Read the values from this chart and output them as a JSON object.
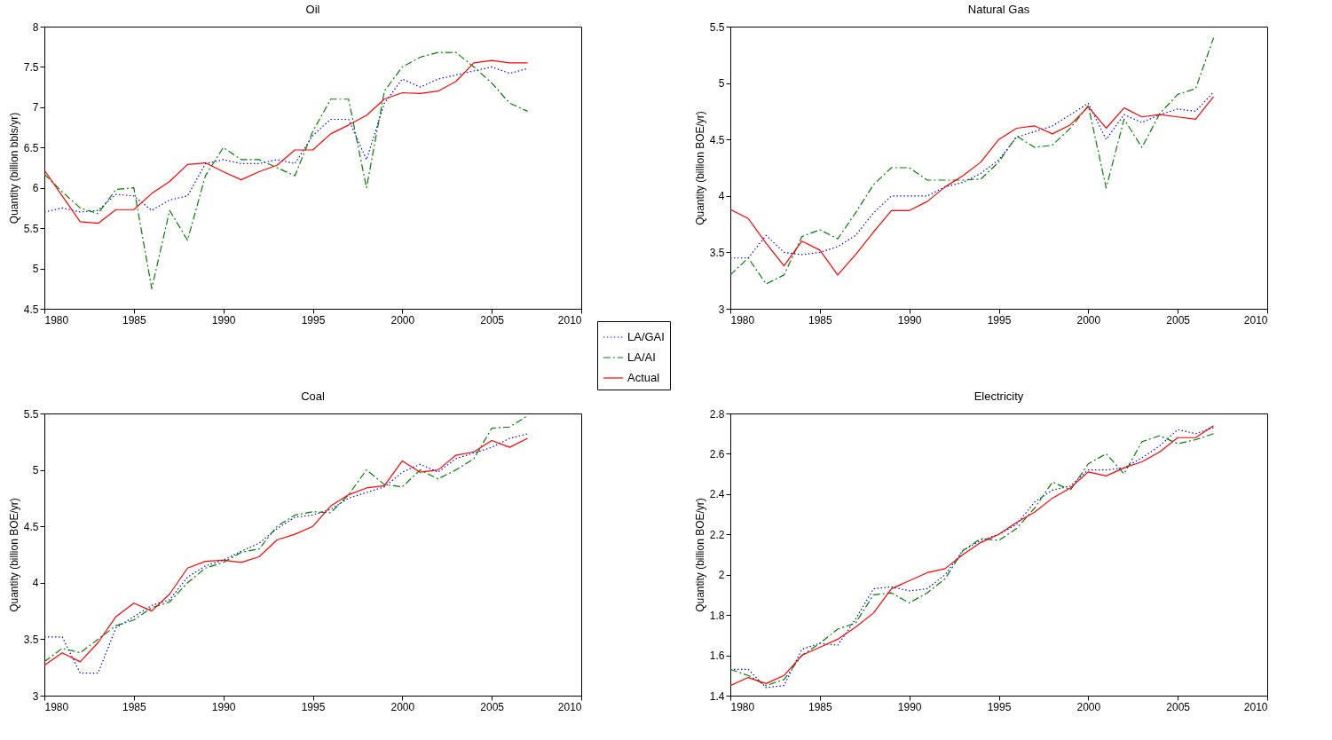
{
  "chart_data": [
    {
      "type": "line",
      "title": "Oil",
      "ylabel": "Quantity (billion bbls/yr)",
      "legend": "bottom right",
      "x": [
        1980,
        1981,
        1982,
        1983,
        1984,
        1985,
        1986,
        1987,
        1988,
        1989,
        1990,
        1991,
        1992,
        1993,
        1994,
        1995,
        1996,
        1997,
        1998,
        1999,
        2000,
        2001,
        2002,
        2003,
        2004,
        2005,
        2006,
        2007
      ],
      "xlim": [
        1980,
        2010
      ],
      "xticks": [
        1980,
        1985,
        1990,
        1995,
        2000,
        2005,
        2010
      ],
      "ylim": [
        4.5,
        8
      ],
      "yticks": [
        4.5,
        5,
        5.5,
        6,
        6.5,
        7,
        7.5,
        8
      ],
      "series": [
        {
          "name": "LA/GAI",
          "color": "#0000ff",
          "line_style": "dotted",
          "values": [
            5.7,
            5.75,
            5.7,
            5.72,
            5.92,
            5.9,
            5.72,
            5.85,
            5.9,
            6.3,
            6.35,
            6.3,
            6.3,
            6.35,
            6.3,
            6.65,
            6.85,
            6.85,
            6.35,
            7.05,
            7.35,
            7.25,
            7.35,
            7.4,
            7.45,
            7.5,
            7.42,
            7.48
          ]
        },
        {
          "name": "LA/AI",
          "color": "#008000",
          "line_style": "dashed",
          "values": [
            6.17,
            5.95,
            5.75,
            5.68,
            5.98,
            6.0,
            4.75,
            5.72,
            5.35,
            6.15,
            6.5,
            6.35,
            6.35,
            6.25,
            6.15,
            6.7,
            7.1,
            7.1,
            6.0,
            7.2,
            7.5,
            7.62,
            7.68,
            7.68,
            7.5,
            7.3,
            7.05,
            6.95
          ]
        },
        {
          "name": "Actual",
          "color": "#ff0000",
          "line_style": "solid",
          "values": [
            6.22,
            5.9,
            5.58,
            5.56,
            5.73,
            5.73,
            5.93,
            6.08,
            6.29,
            6.31,
            6.2,
            6.1,
            6.2,
            6.28,
            6.47,
            6.47,
            6.67,
            6.78,
            6.9,
            7.1,
            7.18,
            7.17,
            7.2,
            7.32,
            7.55,
            7.58,
            7.55,
            7.55
          ]
        }
      ]
    },
    {
      "type": "line",
      "title": "Natural Gas",
      "ylabel": "Quantity (billion BOE/yr)",
      "x": [
        1980,
        1981,
        1982,
        1983,
        1984,
        1985,
        1986,
        1987,
        1988,
        1989,
        1990,
        1991,
        1992,
        1993,
        1994,
        1995,
        1996,
        1997,
        1998,
        1999,
        2000,
        2001,
        2002,
        2003,
        2004,
        2005,
        2006,
        2007
      ],
      "xlim": [
        1980,
        2010
      ],
      "xticks": [
        1980,
        1985,
        1990,
        1995,
        2000,
        2005,
        2010
      ],
      "ylim": [
        3,
        5.5
      ],
      "yticks": [
        3,
        3.5,
        4,
        4.5,
        5,
        5.5
      ],
      "series": [
        {
          "name": "LA/GAI",
          "color": "#0000ff",
          "line_style": "dotted",
          "values": [
            3.45,
            3.45,
            3.65,
            3.5,
            3.48,
            3.5,
            3.55,
            3.65,
            3.85,
            4.0,
            4.0,
            4.0,
            4.08,
            4.12,
            4.2,
            4.32,
            4.52,
            4.57,
            4.62,
            4.72,
            4.82,
            4.5,
            4.72,
            4.65,
            4.72,
            4.77,
            4.75,
            4.92
          ]
        },
        {
          "name": "LA/AI",
          "color": "#008000",
          "line_style": "dashed",
          "values": [
            3.3,
            3.45,
            3.22,
            3.3,
            3.64,
            3.7,
            3.62,
            3.85,
            4.1,
            4.25,
            4.25,
            4.14,
            4.14,
            4.14,
            4.15,
            4.3,
            4.53,
            4.43,
            4.45,
            4.6,
            4.8,
            4.07,
            4.68,
            4.43,
            4.73,
            4.9,
            4.95,
            5.4
          ]
        },
        {
          "name": "Actual",
          "color": "#ff0000",
          "line_style": "solid",
          "values": [
            3.88,
            3.8,
            3.58,
            3.38,
            3.6,
            3.52,
            3.3,
            3.48,
            3.68,
            3.87,
            3.87,
            3.95,
            4.08,
            4.18,
            4.3,
            4.5,
            4.6,
            4.62,
            4.55,
            4.63,
            4.79,
            4.6,
            4.78,
            4.7,
            4.72,
            4.7,
            4.68,
            4.88
          ]
        }
      ]
    },
    {
      "type": "line",
      "title": "Coal",
      "ylabel": "Quantity (billion BOE/yr)",
      "x": [
        1980,
        1981,
        1982,
        1983,
        1984,
        1985,
        1986,
        1987,
        1988,
        1989,
        1990,
        1991,
        1992,
        1993,
        1994,
        1995,
        1996,
        1997,
        1998,
        1999,
        2000,
        2001,
        2002,
        2003,
        2004,
        2005,
        2006,
        2007
      ],
      "xlim": [
        1980,
        2010
      ],
      "xticks": [
        1980,
        1985,
        1990,
        1995,
        2000,
        2005,
        2010
      ],
      "ylim": [
        3,
        5.5
      ],
      "yticks": [
        3,
        3.5,
        4,
        4.5,
        5,
        5.5
      ],
      "series": [
        {
          "name": "LA/GAI",
          "color": "#0000ff",
          "line_style": "dotted",
          "values": [
            3.52,
            3.52,
            3.2,
            3.2,
            3.6,
            3.7,
            3.8,
            3.85,
            4.05,
            4.15,
            4.2,
            4.28,
            4.35,
            4.48,
            4.58,
            4.6,
            4.65,
            4.75,
            4.8,
            4.85,
            4.98,
            5.05,
            4.98,
            5.1,
            5.15,
            5.2,
            5.28,
            5.32
          ]
        },
        {
          "name": "LA/AI",
          "color": "#008000",
          "line_style": "dashed",
          "values": [
            3.3,
            3.42,
            3.38,
            3.5,
            3.62,
            3.67,
            3.78,
            3.83,
            4.0,
            4.13,
            4.18,
            4.27,
            4.3,
            4.5,
            4.6,
            4.63,
            4.62,
            4.78,
            5.0,
            4.87,
            4.85,
            5.0,
            4.92,
            5.0,
            5.1,
            5.37,
            5.38,
            5.48
          ]
        },
        {
          "name": "Actual",
          "color": "#ff0000",
          "line_style": "solid",
          "values": [
            3.27,
            3.38,
            3.3,
            3.47,
            3.7,
            3.82,
            3.75,
            3.9,
            4.13,
            4.19,
            4.2,
            4.18,
            4.23,
            4.38,
            4.43,
            4.5,
            4.68,
            4.78,
            4.84,
            4.86,
            5.08,
            4.98,
            5.0,
            5.13,
            5.16,
            5.26,
            5.2,
            5.28
          ]
        }
      ]
    },
    {
      "type": "line",
      "title": "Electricity",
      "ylabel": "Quantity (billion BOE/yr)",
      "x": [
        1980,
        1981,
        1982,
        1983,
        1984,
        1985,
        1986,
        1987,
        1988,
        1989,
        1990,
        1991,
        1992,
        1993,
        1994,
        1995,
        1996,
        1997,
        1998,
        1999,
        2000,
        2001,
        2002,
        2003,
        2004,
        2005,
        2006,
        2007
      ],
      "xlim": [
        1980,
        2010
      ],
      "xticks": [
        1980,
        1985,
        1990,
        1995,
        2000,
        2005,
        2010
      ],
      "ylim": [
        1.4,
        2.8
      ],
      "yticks": [
        1.4,
        1.6,
        1.8,
        2,
        2.2,
        2.4,
        2.6,
        2.8
      ],
      "series": [
        {
          "name": "LA/GAI",
          "color": "#0000ff",
          "line_style": "dotted",
          "values": [
            1.53,
            1.53,
            1.44,
            1.45,
            1.63,
            1.66,
            1.65,
            1.78,
            1.93,
            1.94,
            1.92,
            1.93,
            2.0,
            2.12,
            2.17,
            2.2,
            2.25,
            2.36,
            2.42,
            2.44,
            2.52,
            2.52,
            2.53,
            2.58,
            2.64,
            2.72,
            2.7,
            2.73
          ]
        },
        {
          "name": "LA/AI",
          "color": "#008000",
          "line_style": "dashed",
          "values": [
            1.53,
            1.5,
            1.45,
            1.48,
            1.6,
            1.66,
            1.73,
            1.76,
            1.9,
            1.91,
            1.86,
            1.91,
            1.98,
            2.12,
            2.18,
            2.17,
            2.23,
            2.33,
            2.46,
            2.42,
            2.55,
            2.6,
            2.5,
            2.66,
            2.69,
            2.65,
            2.67,
            2.7
          ]
        },
        {
          "name": "Actual",
          "color": "#ff0000",
          "line_style": "solid",
          "values": [
            1.45,
            1.49,
            1.46,
            1.5,
            1.6,
            1.64,
            1.68,
            1.74,
            1.81,
            1.93,
            1.97,
            2.01,
            2.03,
            2.1,
            2.16,
            2.2,
            2.26,
            2.31,
            2.38,
            2.43,
            2.51,
            2.49,
            2.53,
            2.56,
            2.61,
            2.68,
            2.68,
            2.74
          ]
        }
      ]
    }
  ]
}
